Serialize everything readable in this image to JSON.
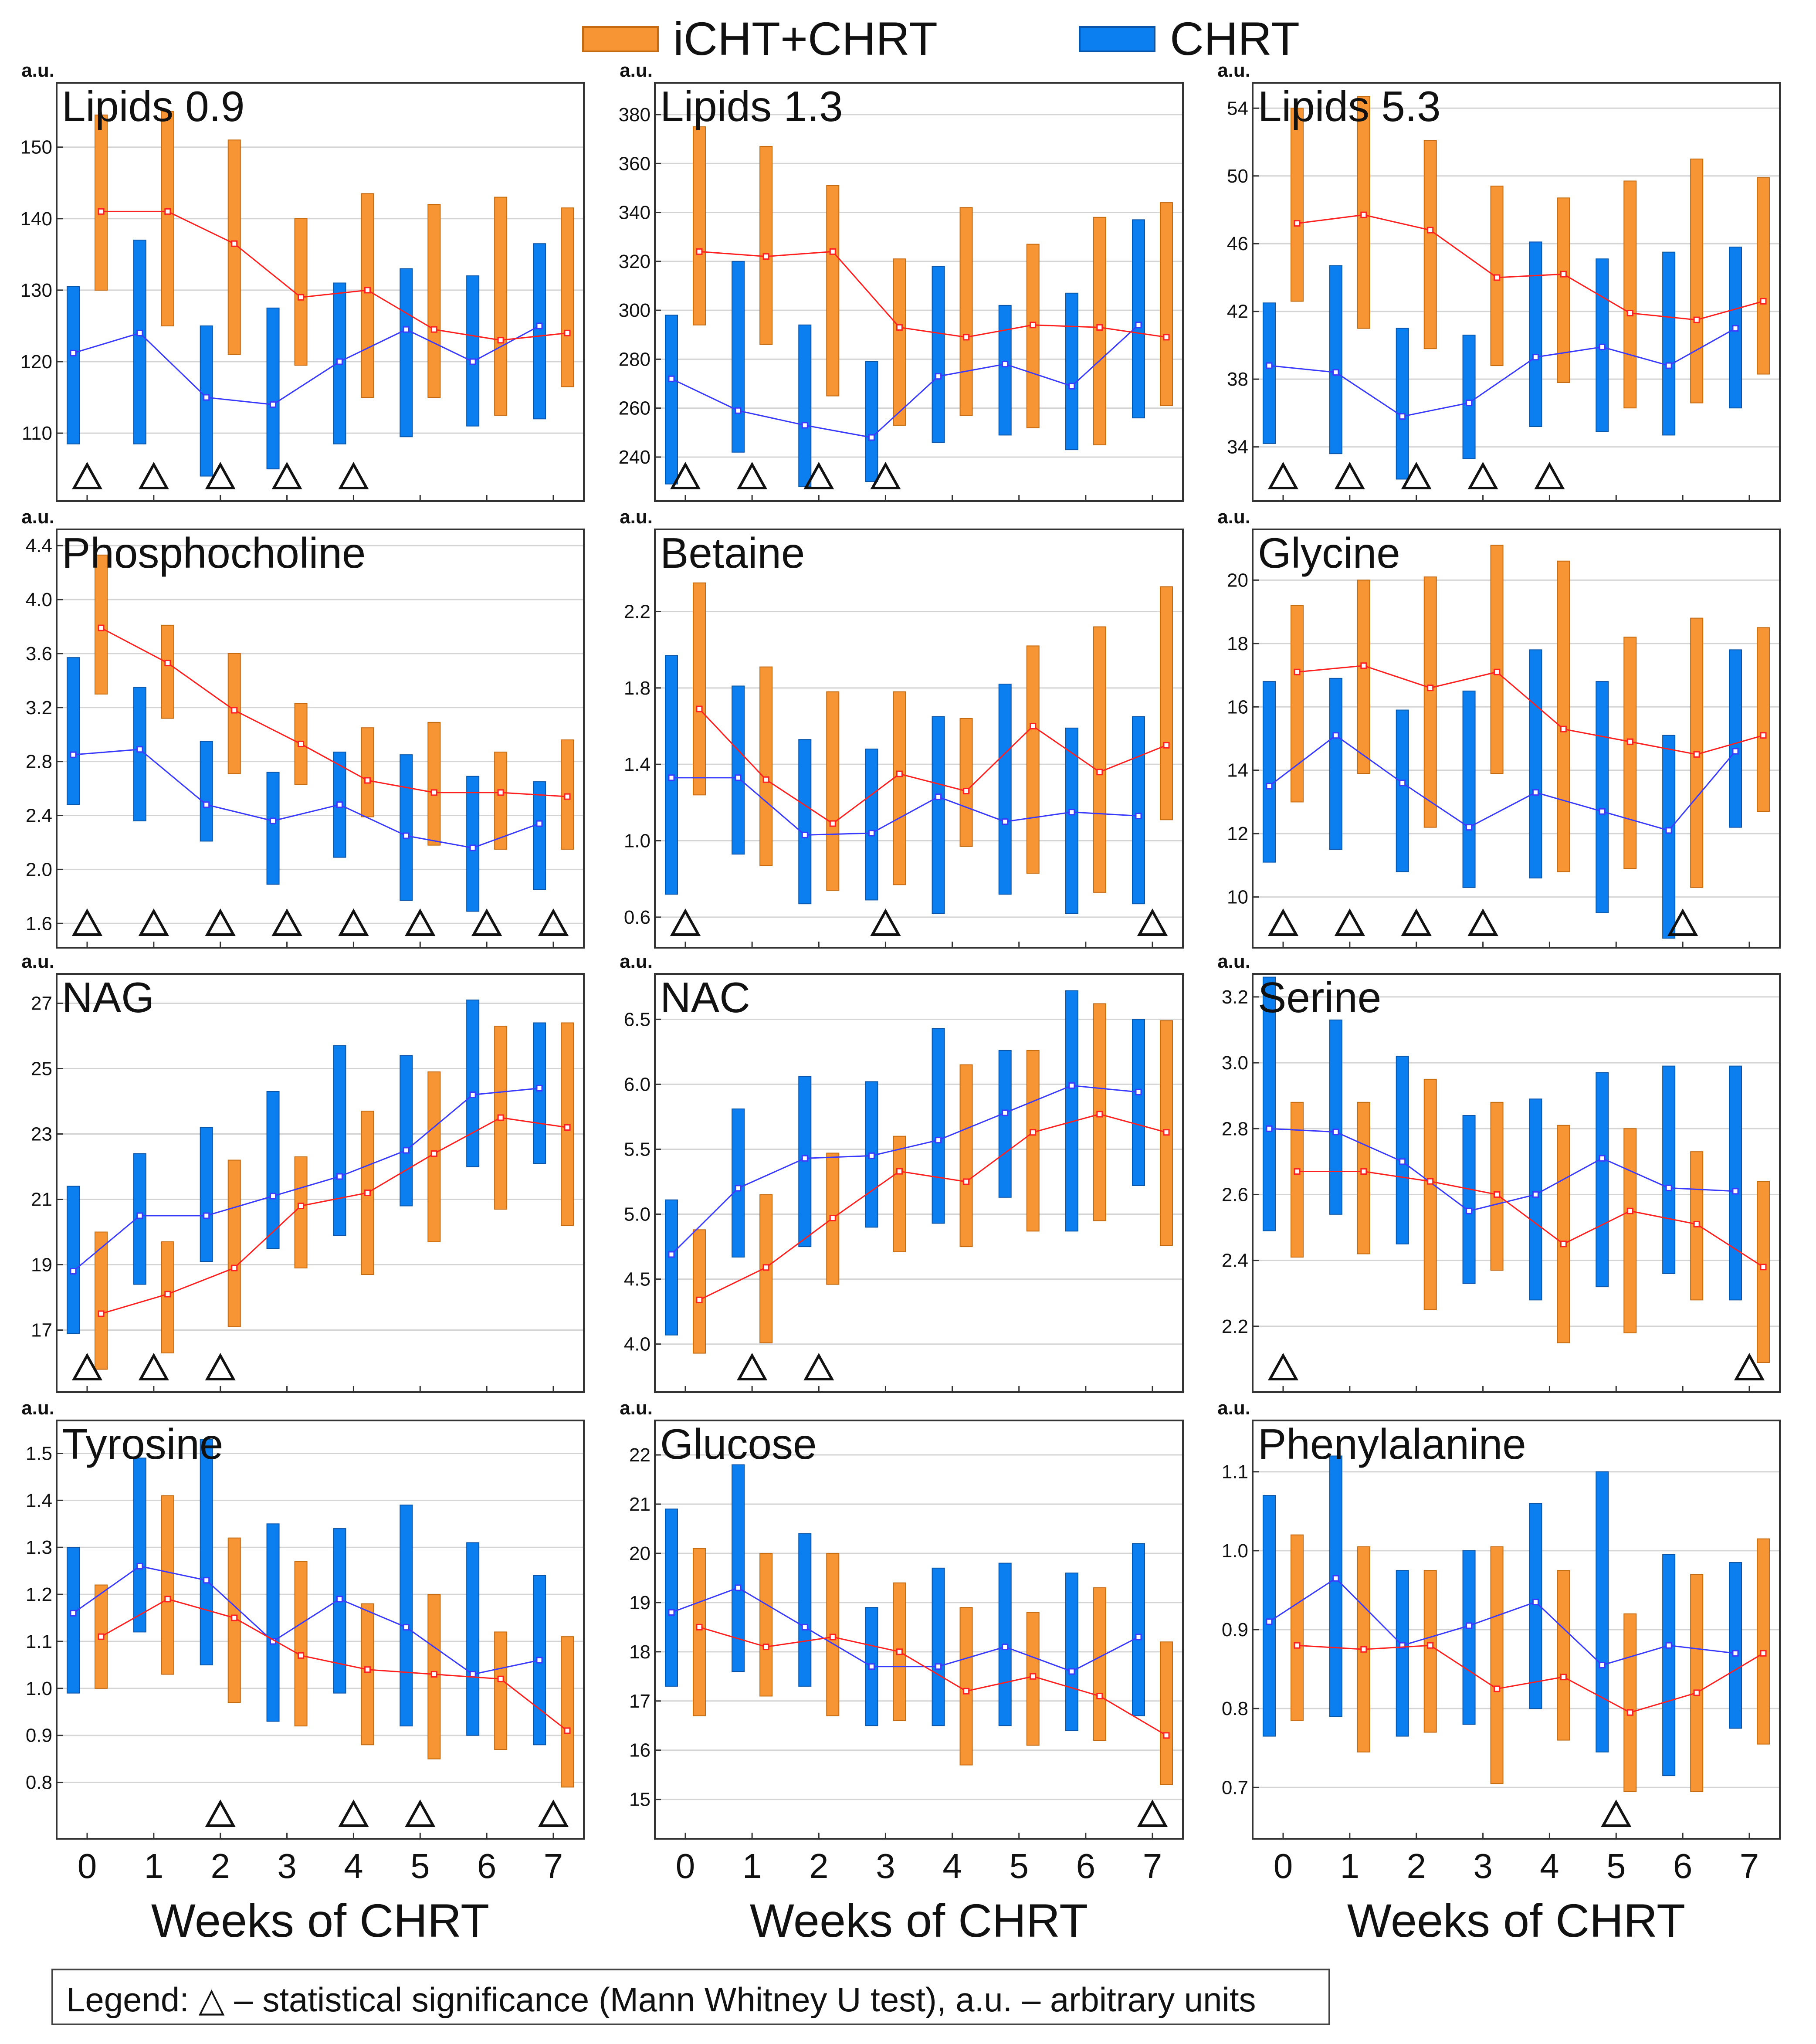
{
  "legend": {
    "series_a": "iCHT+CHRT",
    "series_b": "CHRT",
    "color_a": "#f79433",
    "color_b": "#0b7ff0",
    "line_a": "#ff2020",
    "line_b": "#3a3aff"
  },
  "footnote": "Legend: △ – statistical significance (Mann Whitney U test), a.u. – arbitrary units",
  "chart_data": [
    {
      "type": "bar",
      "title": "Lipids 0.9",
      "ylabel": "a.u.",
      "xlabel": "Weeks of CHRT",
      "x": [
        0,
        1,
        2,
        3,
        4,
        5,
        6,
        7
      ],
      "ylim": [
        100.5,
        159
      ],
      "yticks": [
        110,
        120,
        130,
        140,
        150
      ],
      "significance": [
        0,
        1,
        2,
        3,
        4
      ],
      "series": [
        {
          "name": "CHRT",
          "means": [
            121.2,
            124,
            115,
            114,
            120,
            124.5,
            120,
            125
          ],
          "lows": [
            108.5,
            108.5,
            104,
            105,
            108.5,
            109.5,
            111,
            112
          ],
          "highs": [
            130.5,
            137,
            125,
            127.5,
            131,
            133,
            132,
            136.5
          ]
        },
        {
          "name": "iCHT+CHRT",
          "means": [
            141,
            141,
            136.5,
            129,
            130,
            124.5,
            123,
            124
          ],
          "lows": [
            130,
            125,
            121,
            119.5,
            115,
            115,
            112.5,
            116.5
          ],
          "highs": [
            154.5,
            155,
            151,
            140,
            143.5,
            142,
            143,
            141.5
          ]
        }
      ]
    },
    {
      "type": "bar",
      "title": "Lipids 1.3",
      "ylabel": "a.u.",
      "xlabel": "Weeks of CHRT",
      "x": [
        0,
        1,
        2,
        3,
        4,
        5,
        6,
        7
      ],
      "ylim": [
        222,
        393
      ],
      "yticks": [
        240,
        260,
        280,
        300,
        320,
        340,
        360,
        380
      ],
      "significance": [
        0,
        1,
        2,
        3
      ],
      "series": [
        {
          "name": "CHRT",
          "means": [
            272,
            259,
            253,
            248,
            273,
            278,
            269,
            294
          ],
          "lows": [
            229,
            242,
            228,
            230,
            246,
            249,
            243,
            256
          ],
          "highs": [
            298,
            320,
            294,
            279,
            318,
            302,
            307,
            337
          ]
        },
        {
          "name": "iCHT+CHRT",
          "means": [
            324,
            322,
            324,
            293,
            289,
            294,
            293,
            289
          ],
          "lows": [
            294,
            286,
            265,
            253,
            257,
            252,
            245,
            261
          ],
          "highs": [
            375,
            367,
            351,
            321,
            342,
            327,
            338,
            344
          ]
        }
      ]
    },
    {
      "type": "bar",
      "title": "Lipids 5.3",
      "ylabel": "a.u.",
      "xlabel": "Weeks of CHRT",
      "x": [
        0,
        1,
        2,
        3,
        4,
        5,
        6,
        7
      ],
      "ylim": [
        30.8,
        55.5
      ],
      "yticks": [
        34,
        38,
        42,
        46,
        50,
        54
      ],
      "significance": [
        0,
        1,
        2,
        3,
        4
      ],
      "series": [
        {
          "name": "CHRT",
          "means": [
            38.8,
            38.4,
            35.8,
            36.6,
            39.3,
            39.9,
            38.8,
            41
          ],
          "lows": [
            34.2,
            33.6,
            32.1,
            33.3,
            35.2,
            34.9,
            34.7,
            36.3
          ],
          "highs": [
            42.5,
            44.7,
            41,
            40.6,
            46.1,
            45.1,
            45.5,
            45.8
          ]
        },
        {
          "name": "iCHT+CHRT",
          "means": [
            47.2,
            47.7,
            46.8,
            44,
            44.2,
            41.9,
            41.5,
            42.6
          ],
          "lows": [
            42.6,
            41,
            39.8,
            38.8,
            37.8,
            36.3,
            36.6,
            38.3
          ],
          "highs": [
            54,
            54.7,
            52.1,
            49.4,
            48.7,
            49.7,
            51,
            49.9
          ]
        }
      ]
    },
    {
      "type": "bar",
      "title": "Phosphocholine",
      "ylabel": "a.u.",
      "xlabel": "Weeks of CHRT",
      "x": [
        0,
        1,
        2,
        3,
        4,
        5,
        6,
        7
      ],
      "ylim": [
        1.42,
        4.52
      ],
      "yticks": [
        1.6,
        2.0,
        2.4,
        2.8,
        3.2,
        3.6,
        4.0,
        4.4
      ],
      "significance": [
        0,
        1,
        2,
        3,
        4,
        5,
        6,
        7
      ],
      "series": [
        {
          "name": "CHRT",
          "means": [
            2.85,
            2.89,
            2.48,
            2.36,
            2.48,
            2.25,
            2.16,
            2.34
          ],
          "lows": [
            2.48,
            2.36,
            2.21,
            1.89,
            2.09,
            1.77,
            1.69,
            1.85
          ],
          "highs": [
            3.57,
            3.35,
            2.95,
            2.72,
            2.87,
            2.85,
            2.69,
            2.65
          ]
        },
        {
          "name": "iCHT+CHRT",
          "means": [
            3.79,
            3.53,
            3.18,
            2.93,
            2.66,
            2.57,
            2.57,
            2.54
          ],
          "lows": [
            3.3,
            3.12,
            2.71,
            2.63,
            2.39,
            2.18,
            2.15,
            2.15
          ],
          "highs": [
            4.33,
            3.81,
            3.6,
            3.23,
            3.05,
            3.09,
            2.87,
            2.96
          ]
        }
      ]
    },
    {
      "type": "bar",
      "title": "Betaine",
      "ylabel": "a.u.",
      "xlabel": "Weeks of CHRT",
      "x": [
        0,
        1,
        2,
        3,
        4,
        5,
        6,
        7
      ],
      "ylim": [
        0.44,
        2.63
      ],
      "yticks": [
        0.6,
        1.0,
        1.4,
        1.8,
        2.2
      ],
      "significance": [
        0,
        3,
        7
      ],
      "series": [
        {
          "name": "CHRT",
          "means": [
            1.33,
            1.33,
            1.03,
            1.04,
            1.23,
            1.1,
            1.15,
            1.13
          ],
          "lows": [
            0.72,
            0.93,
            0.67,
            0.69,
            0.62,
            0.72,
            0.62,
            0.67
          ],
          "highs": [
            1.97,
            1.81,
            1.53,
            1.48,
            1.65,
            1.82,
            1.59,
            1.65
          ]
        },
        {
          "name": "iCHT+CHRT",
          "means": [
            1.69,
            1.32,
            1.09,
            1.35,
            1.26,
            1.6,
            1.36,
            1.5
          ],
          "lows": [
            1.24,
            0.87,
            0.74,
            0.77,
            0.97,
            0.83,
            0.73,
            1.11
          ],
          "highs": [
            2.35,
            1.91,
            1.78,
            1.78,
            1.64,
            2.02,
            2.12,
            2.33
          ]
        }
      ]
    },
    {
      "type": "bar",
      "title": "Glycine",
      "ylabel": "a.u.",
      "xlabel": "Weeks of CHRT",
      "x": [
        0,
        1,
        2,
        3,
        4,
        5,
        6,
        7
      ],
      "ylim": [
        8.4,
        21.6
      ],
      "yticks": [
        10,
        12,
        14,
        16,
        18,
        20
      ],
      "significance": [
        0,
        1,
        2,
        3,
        6
      ],
      "series": [
        {
          "name": "CHRT",
          "means": [
            13.5,
            15.1,
            13.6,
            12.2,
            13.3,
            12.7,
            12.1,
            14.6
          ],
          "lows": [
            11.1,
            11.5,
            10.8,
            10.3,
            10.6,
            9.5,
            8.7,
            12.2
          ],
          "highs": [
            16.8,
            16.9,
            15.9,
            16.5,
            17.8,
            16.8,
            15.1,
            17.8
          ]
        },
        {
          "name": "iCHT+CHRT",
          "means": [
            17.1,
            17.3,
            16.6,
            17.1,
            15.3,
            14.9,
            14.5,
            15.1
          ],
          "lows": [
            13,
            13.9,
            12.2,
            13.9,
            10.8,
            10.9,
            10.3,
            12.7
          ],
          "highs": [
            19.2,
            20,
            20.1,
            21.1,
            20.6,
            18.2,
            18.8,
            18.5
          ]
        }
      ]
    },
    {
      "type": "bar",
      "title": "NAG",
      "ylabel": "a.u.",
      "xlabel": "Weeks of CHRT",
      "x": [
        0,
        1,
        2,
        3,
        4,
        5,
        6,
        7
      ],
      "ylim": [
        15.1,
        27.9
      ],
      "yticks": [
        17,
        19,
        21,
        23,
        25,
        27
      ],
      "significance": [
        0,
        1,
        2
      ],
      "series": [
        {
          "name": "CHRT",
          "means": [
            18.8,
            20.5,
            20.5,
            21.1,
            21.7,
            22.5,
            24.2,
            24.4
          ],
          "lows": [
            16.9,
            18.4,
            19.1,
            19.5,
            19.9,
            20.8,
            22,
            22.1
          ],
          "highs": [
            21.4,
            22.4,
            23.2,
            24.3,
            25.7,
            25.4,
            27.1,
            26.4
          ]
        },
        {
          "name": "iCHT+CHRT",
          "means": [
            17.5,
            18.1,
            18.9,
            20.8,
            21.2,
            22.4,
            23.5,
            23.2
          ],
          "lows": [
            15.8,
            16.3,
            17.1,
            18.9,
            18.7,
            19.7,
            20.7,
            20.2
          ],
          "highs": [
            20,
            19.7,
            22.2,
            22.3,
            23.7,
            24.9,
            26.3,
            26.4
          ]
        }
      ]
    },
    {
      "type": "bar",
      "title": "NAC",
      "ylabel": "a.u.",
      "xlabel": "Weeks of CHRT",
      "x": [
        0,
        1,
        2,
        3,
        4,
        5,
        6,
        7
      ],
      "ylim": [
        3.63,
        6.85
      ],
      "yticks": [
        4.0,
        4.5,
        5.0,
        5.5,
        6.0,
        6.5
      ],
      "significance": [
        1,
        2
      ],
      "series": [
        {
          "name": "CHRT",
          "means": [
            4.69,
            5.2,
            5.43,
            5.45,
            5.57,
            5.78,
            5.99,
            5.94
          ],
          "lows": [
            4.07,
            4.67,
            4.75,
            4.9,
            4.93,
            5.13,
            4.87,
            5.22
          ],
          "highs": [
            5.11,
            5.81,
            6.06,
            6.02,
            6.43,
            6.26,
            6.72,
            6.5
          ]
        },
        {
          "name": "iCHT+CHRT",
          "means": [
            4.34,
            4.59,
            4.97,
            5.33,
            5.25,
            5.63,
            5.77,
            5.63
          ],
          "lows": [
            3.93,
            4.01,
            4.46,
            4.71,
            4.75,
            4.87,
            4.95,
            4.76
          ],
          "highs": [
            4.88,
            5.15,
            5.47,
            5.6,
            6.15,
            6.26,
            6.62,
            6.49
          ]
        }
      ]
    },
    {
      "type": "bar",
      "title": "Serine",
      "ylabel": "a.u.",
      "xlabel": "Weeks of CHRT",
      "x": [
        0,
        1,
        2,
        3,
        4,
        5,
        6,
        7
      ],
      "ylim": [
        2.0,
        3.27
      ],
      "yticks": [
        2.2,
        2.4,
        2.6,
        2.8,
        3.0,
        3.2
      ],
      "significance": [
        0,
        7
      ],
      "series": [
        {
          "name": "CHRT",
          "means": [
            2.8,
            2.79,
            2.7,
            2.55,
            2.6,
            2.71,
            2.62,
            2.61
          ],
          "lows": [
            2.49,
            2.54,
            2.45,
            2.33,
            2.28,
            2.32,
            2.36,
            2.28
          ],
          "highs": [
            3.26,
            3.13,
            3.02,
            2.84,
            2.89,
            2.97,
            2.99,
            2.99
          ]
        },
        {
          "name": "iCHT+CHRT",
          "means": [
            2.67,
            2.67,
            2.64,
            2.6,
            2.45,
            2.55,
            2.51,
            2.38
          ],
          "lows": [
            2.41,
            2.42,
            2.25,
            2.37,
            2.15,
            2.18,
            2.28,
            2.09
          ],
          "highs": [
            2.88,
            2.88,
            2.95,
            2.88,
            2.81,
            2.8,
            2.73,
            2.64
          ]
        }
      ]
    },
    {
      "type": "bar",
      "title": "Tyrosine",
      "ylabel": "a.u.",
      "xlabel": "Weeks of CHRT",
      "x": [
        0,
        1,
        2,
        3,
        4,
        5,
        6,
        7
      ],
      "ylim": [
        0.68,
        1.57
      ],
      "yticks": [
        0.8,
        0.9,
        1.0,
        1.1,
        1.2,
        1.3,
        1.4,
        1.5
      ],
      "significance": [
        2,
        4,
        5,
        7
      ],
      "series": [
        {
          "name": "CHRT",
          "means": [
            1.16,
            1.26,
            1.23,
            1.1,
            1.19,
            1.13,
            1.03,
            1.06
          ],
          "lows": [
            0.99,
            1.12,
            1.05,
            0.93,
            0.99,
            0.92,
            0.9,
            0.88
          ],
          "highs": [
            1.3,
            1.49,
            1.53,
            1.35,
            1.34,
            1.39,
            1.31,
            1.24
          ]
        },
        {
          "name": "iCHT+CHRT",
          "means": [
            1.11,
            1.19,
            1.15,
            1.07,
            1.04,
            1.03,
            1.02,
            0.91
          ],
          "lows": [
            1,
            1.03,
            0.97,
            0.92,
            0.88,
            0.85,
            0.87,
            0.79
          ],
          "highs": [
            1.22,
            1.41,
            1.32,
            1.27,
            1.18,
            1.2,
            1.12,
            1.11
          ]
        }
      ]
    },
    {
      "type": "bar",
      "title": "Glucose",
      "ylabel": "a.u.",
      "xlabel": "Weeks of CHRT",
      "x": [
        0,
        1,
        2,
        3,
        4,
        5,
        6,
        7
      ],
      "ylim": [
        14.2,
        22.7
      ],
      "yticks": [
        15,
        16,
        17,
        18,
        19,
        20,
        21,
        22
      ],
      "significance": [
        7
      ],
      "series": [
        {
          "name": "CHRT",
          "means": [
            18.8,
            19.3,
            18.5,
            17.7,
            17.7,
            18.1,
            17.6,
            18.3
          ],
          "lows": [
            17.3,
            17.6,
            17.3,
            16.5,
            16.5,
            16.5,
            16.4,
            16.7
          ],
          "highs": [
            20.9,
            21.8,
            20.4,
            18.9,
            19.7,
            19.8,
            19.6,
            20.2
          ]
        },
        {
          "name": "iCHT+CHRT",
          "means": [
            18.5,
            18.1,
            18.3,
            18,
            17.2,
            17.5,
            17.1,
            16.3
          ],
          "lows": [
            16.7,
            17.1,
            16.7,
            16.6,
            15.7,
            16.1,
            16.2,
            15.3
          ],
          "highs": [
            20.1,
            20,
            20,
            19.4,
            18.9,
            18.8,
            19.3,
            18.2
          ]
        }
      ]
    },
    {
      "type": "bar",
      "title": "Phenylalanine",
      "ylabel": "a.u.",
      "xlabel": "Weeks of CHRT",
      "x": [
        0,
        1,
        2,
        3,
        4,
        5,
        6,
        7
      ],
      "ylim": [
        0.635,
        1.165
      ],
      "yticks": [
        0.7,
        0.8,
        0.9,
        1.0,
        1.1
      ],
      "significance": [
        5
      ],
      "series": [
        {
          "name": "CHRT",
          "means": [
            0.91,
            0.965,
            0.88,
            0.905,
            0.935,
            0.855,
            0.88,
            0.87
          ],
          "lows": [
            0.765,
            0.79,
            0.765,
            0.78,
            0.8,
            0.745,
            0.715,
            0.775
          ],
          "highs": [
            1.07,
            1.12,
            0.975,
            1,
            1.06,
            1.1,
            0.995,
            0.985
          ]
        },
        {
          "name": "iCHT+CHRT",
          "means": [
            0.88,
            0.875,
            0.88,
            0.825,
            0.84,
            0.795,
            0.82,
            0.87
          ],
          "lows": [
            0.785,
            0.745,
            0.77,
            0.705,
            0.76,
            0.695,
            0.695,
            0.755
          ],
          "highs": [
            1.02,
            1.005,
            0.975,
            1.005,
            0.975,
            0.92,
            0.97,
            1.015
          ]
        }
      ]
    }
  ]
}
